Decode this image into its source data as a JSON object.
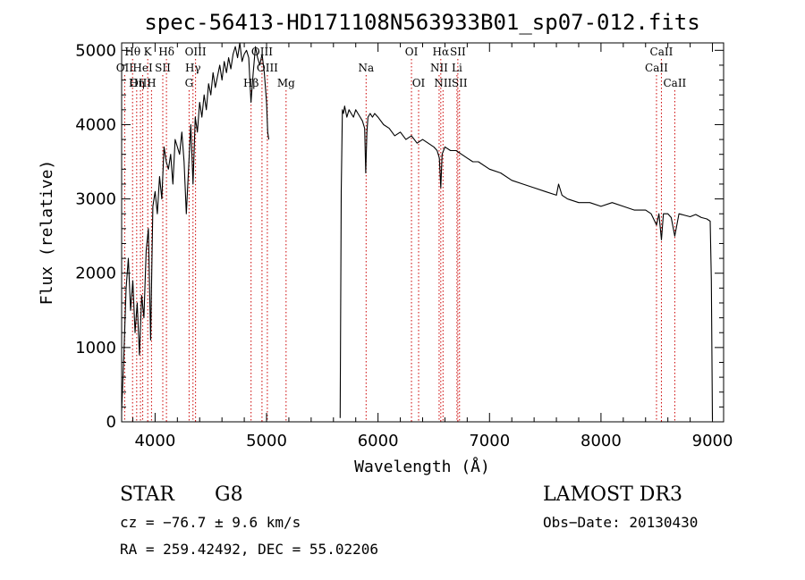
{
  "chart_data": {
    "type": "line",
    "title": "spec-56413-HD171108N563933B01_sp07-012.fits",
    "xlabel": "Wavelength (Å)",
    "ylabel": "Flux (relative)",
    "xlim": [
      3700,
      9100
    ],
    "ylim": [
      0,
      5100
    ],
    "x_ticks": [
      4000,
      5000,
      6000,
      7000,
      8000,
      9000
    ],
    "x_tick_labels": [
      "4000",
      "5000",
      "6000",
      "7000",
      "8000",
      "9000"
    ],
    "y_ticks": [
      0,
      1000,
      2000,
      3000,
      4000,
      5000
    ],
    "y_tick_labels": [
      "0",
      "1000",
      "2000",
      "3000",
      "4000",
      "5000"
    ],
    "line_color": "#000000",
    "marker_color": "#cc0000",
    "series": [
      {
        "name": "flux",
        "segments": [
          {
            "x": [
              3700,
              3720,
              3740,
              3760,
              3780,
              3800,
              3820,
              3840,
              3860,
              3880,
              3900,
              3920,
              3940,
              3960,
              3980,
              4000,
              4020,
              4040,
              4060,
              4080,
              4100,
              4120,
              4140,
              4160,
              4180,
              4200,
              4220,
              4240,
              4260,
              4280,
              4300,
              4320,
              4340,
              4360,
              4380,
              4400,
              4420,
              4440,
              4460,
              4480,
              4500,
              4520,
              4540,
              4560,
              4580,
              4600,
              4620,
              4640,
              4660,
              4680,
              4700,
              4720,
              4740,
              4760,
              4780,
              4800,
              4820,
              4840,
              4860,
              4880,
              4900,
              4920,
              4940,
              4960,
              4980,
              5000,
              5010,
              5020
            ],
            "y": [
              150,
              900,
              1800,
              2200,
              1500,
              1900,
              1200,
              1600,
              900,
              1700,
              1400,
              2300,
              2600,
              1100,
              2900,
              3100,
              2800,
              3300,
              3000,
              3700,
              3500,
              3400,
              3600,
              3200,
              3800,
              3700,
              3600,
              3900,
              3500,
              2800,
              3400,
              4000,
              3200,
              4100,
              3900,
              4300,
              4100,
              4400,
              4200,
              4550,
              4400,
              4700,
              4500,
              4650,
              4800,
              4600,
              4850,
              4700,
              4900,
              4750,
              4950,
              5050,
              4900,
              5100,
              4850,
              4950,
              5000,
              4900,
              4300,
              4700,
              5050,
              4900,
              4800,
              4950,
              4700,
              4300,
              3900,
              3800
            ]
          },
          {
            "x": [
              5660,
              5670,
              5680,
              5690,
              5700,
              5720,
              5740,
              5760,
              5780,
              5800,
              5820,
              5840,
              5860,
              5880,
              5890,
              5900,
              5910,
              5930,
              5950,
              5970,
              6000,
              6050,
              6100,
              6150,
              6200,
              6250,
              6300,
              6350,
              6400,
              6450,
              6500,
              6530,
              6550,
              6563,
              6575,
              6600,
              6650,
              6700,
              6750,
              6800,
              6850,
              6900,
              7000,
              7100,
              7200,
              7300,
              7400,
              7500,
              7600,
              7620,
              7650,
              7700,
              7800,
              7900,
              8000,
              8100,
              8200,
              8300,
              8400,
              8450,
              8498,
              8520,
              8542,
              8560,
              8600,
              8630,
              8662,
              8700,
              8750,
              8800,
              8850,
              8900,
              8950,
              8980,
              8990,
              9000
            ],
            "y": [
              50,
              3100,
              4200,
              4150,
              4250,
              4100,
              4200,
              4150,
              4100,
              4200,
              4150,
              4100,
              4050,
              3950,
              3350,
              3900,
              4100,
              4150,
              4100,
              4150,
              4100,
              4000,
              3950,
              3850,
              3900,
              3800,
              3850,
              3750,
              3800,
              3750,
              3700,
              3650,
              3550,
              3150,
              3600,
              3700,
              3650,
              3650,
              3600,
              3550,
              3500,
              3500,
              3400,
              3350,
              3250,
              3200,
              3150,
              3100,
              3050,
              3200,
              3050,
              3000,
              2950,
              2950,
              2900,
              2950,
              2900,
              2850,
              2850,
              2800,
              2650,
              2800,
              2450,
              2800,
              2800,
              2750,
              2500,
              2800,
              2780,
              2760,
              2790,
              2750,
              2730,
              2700,
              1900,
              30
            ]
          }
        ]
      }
    ],
    "line_markers": [
      {
        "label": "Hθ",
        "x": 3798,
        "row": 0
      },
      {
        "label": "OII",
        "x": 3727,
        "row": 1
      },
      {
        "label": "OIII",
        "x": 3869,
        "row": 2
      },
      {
        "label": "HeI",
        "x": 3889,
        "row": 1
      },
      {
        "label": "K",
        "x": 3934,
        "row": 0
      },
      {
        "label": "Hη",
        "x": 3835,
        "row": 2
      },
      {
        "label": "H",
        "x": 3968,
        "row": 2
      },
      {
        "label": "SII",
        "x": 4069,
        "row": 1
      },
      {
        "label": "Hδ",
        "x": 4102,
        "row": 0
      },
      {
        "label": "OIII",
        "x": 4363,
        "row": 0
      },
      {
        "label": "Hγ",
        "x": 4340,
        "row": 1
      },
      {
        "label": "G",
        "x": 4305,
        "row": 2
      },
      {
        "label": "Hβ",
        "x": 4861,
        "row": 2
      },
      {
        "label": "OIII",
        "x": 4959,
        "row": 0
      },
      {
        "label": "OIII",
        "x": 5007,
        "row": 1
      },
      {
        "label": "Mg",
        "x": 5175,
        "row": 2
      },
      {
        "label": "Na",
        "x": 5893,
        "row": 1
      },
      {
        "label": "OI",
        "x": 6300,
        "row": 0
      },
      {
        "label": "OI",
        "x": 6364,
        "row": 2
      },
      {
        "label": "Hα",
        "x": 6563,
        "row": 0
      },
      {
        "label": "SII",
        "x": 6716,
        "row": 0
      },
      {
        "label": "NII",
        "x": 6548,
        "row": 1
      },
      {
        "label": "Li",
        "x": 6708,
        "row": 1
      },
      {
        "label": "NII",
        "x": 6583,
        "row": 2
      },
      {
        "label": "SII",
        "x": 6731,
        "row": 2
      },
      {
        "label": "CaII",
        "x": 8542,
        "row": 0
      },
      {
        "label": "CaII",
        "x": 8498,
        "row": 1
      },
      {
        "label": "CaII",
        "x": 8662,
        "row": 2
      }
    ]
  },
  "info": {
    "object_type": "STAR",
    "subclass": "G8",
    "survey": "LAMOST DR3",
    "cz_text": "cz = −76.7 ± 9.6 km/s",
    "obs_date_text": "Obs−Date: 20130430",
    "coords_text": "RA = 259.42492, DEC =  55.02206"
  }
}
